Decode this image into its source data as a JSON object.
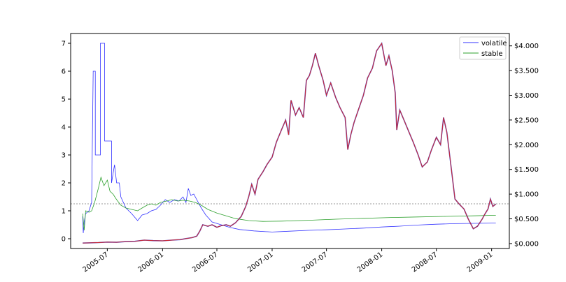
{
  "chart_data": {
    "type": "line",
    "title": "",
    "xlabel": "",
    "ylabel_left": "",
    "ylabel_right": "",
    "ylim_left": [
      -0.35,
      7.35
    ],
    "ylim_right": [
      -0.1,
      4.25
    ],
    "xlim": [
      "2005-03-01",
      "2009-03-01"
    ],
    "reference_line": {
      "axis": "left",
      "value": 1.25,
      "style": "dotted",
      "color": "#999999"
    },
    "legend_placement": "top-right",
    "colors": {
      "volatile": "#3333ff",
      "stable": "#2ca02c",
      "price": "#d62728",
      "price_overlay": "#1f1fbf"
    },
    "x_ticks": [
      {
        "date": "2005-07-01",
        "label": "2005-07"
      },
      {
        "date": "2006-01-01",
        "label": "2006-01"
      },
      {
        "date": "2006-07-01",
        "label": "2006-07"
      },
      {
        "date": "2007-01-01",
        "label": "2007-01"
      },
      {
        "date": "2007-07-01",
        "label": "2007-07"
      },
      {
        "date": "2008-01-01",
        "label": "2008-01"
      },
      {
        "date": "2008-07-01",
        "label": "2008-07"
      },
      {
        "date": "2009-01-01",
        "label": "2009-01"
      }
    ],
    "y_ticks_left": [
      {
        "value": 0,
        "label": "0"
      },
      {
        "value": 1,
        "label": "1"
      },
      {
        "value": 2,
        "label": "2"
      },
      {
        "value": 3,
        "label": "3"
      },
      {
        "value": 4,
        "label": "4"
      },
      {
        "value": 5,
        "label": "5"
      },
      {
        "value": 6,
        "label": "6"
      },
      {
        "value": 7,
        "label": "7"
      }
    ],
    "y_ticks_right": [
      {
        "value": 0,
        "label": "$0.000"
      },
      {
        "value": 0.5,
        "label": "$0.500"
      },
      {
        "value": 1.0,
        "label": "$1.000"
      },
      {
        "value": 1.5,
        "label": "$1.500"
      },
      {
        "value": 2.0,
        "label": "$2.000"
      },
      {
        "value": 2.5,
        "label": "$2.500"
      },
      {
        "value": 3.0,
        "label": "$3.000"
      },
      {
        "value": 3.5,
        "label": "$3.500"
      },
      {
        "value": 4.0,
        "label": "$4.000"
      }
    ],
    "series": [
      {
        "name": "volatile",
        "axis": "left",
        "points": [
          [
            "2005-04-10",
            0.8
          ],
          [
            "2005-04-12",
            0.2
          ],
          [
            "2005-04-15",
            0.6
          ],
          [
            "2005-04-20",
            0.9
          ],
          [
            "2005-05-01",
            1.0
          ],
          [
            "2005-05-10",
            1.3
          ],
          [
            "2005-05-15",
            6.0
          ],
          [
            "2005-05-22",
            6.0
          ],
          [
            "2005-05-22",
            3.0
          ],
          [
            "2005-06-08",
            3.0
          ],
          [
            "2005-06-08",
            7.0
          ],
          [
            "2005-06-22",
            7.0
          ],
          [
            "2005-06-22",
            3.5
          ],
          [
            "2005-07-15",
            3.5
          ],
          [
            "2005-07-15",
            2.0
          ],
          [
            "2005-07-25",
            2.65
          ],
          [
            "2005-08-01",
            2.0
          ],
          [
            "2005-08-10",
            2.0
          ],
          [
            "2005-08-15",
            1.5
          ],
          [
            "2005-09-01",
            1.1
          ],
          [
            "2005-09-20",
            0.9
          ],
          [
            "2005-10-10",
            0.65
          ],
          [
            "2005-10-25",
            0.85
          ],
          [
            "2005-11-10",
            0.9
          ],
          [
            "2005-11-25",
            1.0
          ],
          [
            "2005-12-10",
            1.05
          ],
          [
            "2005-12-25",
            1.2
          ],
          [
            "2006-01-10",
            1.4
          ],
          [
            "2006-01-25",
            1.3
          ],
          [
            "2006-02-10",
            1.4
          ],
          [
            "2006-02-25",
            1.35
          ],
          [
            "2006-03-10",
            1.5
          ],
          [
            "2006-03-20",
            1.3
          ],
          [
            "2006-03-28",
            1.8
          ],
          [
            "2006-04-05",
            1.55
          ],
          [
            "2006-04-15",
            1.6
          ],
          [
            "2006-04-25",
            1.4
          ],
          [
            "2006-05-10",
            1.1
          ],
          [
            "2006-05-25",
            0.85
          ],
          [
            "2006-06-15",
            0.6
          ],
          [
            "2006-07-15",
            0.5
          ],
          [
            "2006-08-15",
            0.4
          ],
          [
            "2006-09-15",
            0.33
          ],
          [
            "2006-11-01",
            0.28
          ],
          [
            "2007-01-01",
            0.24
          ],
          [
            "2007-03-01",
            0.27
          ],
          [
            "2007-05-01",
            0.3
          ],
          [
            "2007-07-01",
            0.32
          ],
          [
            "2007-09-01",
            0.35
          ],
          [
            "2007-11-01",
            0.38
          ],
          [
            "2008-01-01",
            0.42
          ],
          [
            "2008-03-01",
            0.45
          ],
          [
            "2008-05-01",
            0.49
          ],
          [
            "2008-07-01",
            0.52
          ],
          [
            "2008-09-01",
            0.54
          ],
          [
            "2008-11-01",
            0.55
          ],
          [
            "2009-01-01",
            0.56
          ],
          [
            "2009-01-15",
            0.56
          ]
        ]
      },
      {
        "name": "stable",
        "axis": "left",
        "points": [
          [
            "2005-04-10",
            0.9
          ],
          [
            "2005-04-15",
            0.3
          ],
          [
            "2005-04-20",
            1.0
          ],
          [
            "2005-05-01",
            0.95
          ],
          [
            "2005-05-10",
            1.0
          ],
          [
            "2005-05-20",
            1.3
          ],
          [
            "2005-06-01",
            1.8
          ],
          [
            "2005-06-10",
            2.2
          ],
          [
            "2005-06-20",
            1.9
          ],
          [
            "2005-07-01",
            2.1
          ],
          [
            "2005-07-10",
            1.7
          ],
          [
            "2005-07-20",
            1.6
          ],
          [
            "2005-08-01",
            1.4
          ],
          [
            "2005-08-15",
            1.2
          ],
          [
            "2005-09-01",
            1.1
          ],
          [
            "2005-09-20",
            1.05
          ],
          [
            "2005-10-10",
            1.0
          ],
          [
            "2005-10-25",
            1.1
          ],
          [
            "2005-11-10",
            1.2
          ],
          [
            "2005-11-25",
            1.25
          ],
          [
            "2005-12-10",
            1.2
          ],
          [
            "2005-12-25",
            1.3
          ],
          [
            "2006-01-15",
            1.35
          ],
          [
            "2006-02-01",
            1.4
          ],
          [
            "2006-02-20",
            1.35
          ],
          [
            "2006-03-10",
            1.38
          ],
          [
            "2006-04-01",
            1.35
          ],
          [
            "2006-04-20",
            1.3
          ],
          [
            "2006-05-10",
            1.2
          ],
          [
            "2006-06-01",
            1.05
          ],
          [
            "2006-07-01",
            0.92
          ],
          [
            "2006-08-01",
            0.82
          ],
          [
            "2006-09-01",
            0.72
          ],
          [
            "2006-10-15",
            0.65
          ],
          [
            "2006-12-01",
            0.62
          ],
          [
            "2007-02-01",
            0.63
          ],
          [
            "2007-05-01",
            0.66
          ],
          [
            "2007-08-01",
            0.7
          ],
          [
            "2007-11-01",
            0.73
          ],
          [
            "2008-02-01",
            0.76
          ],
          [
            "2008-05-01",
            0.78
          ],
          [
            "2008-08-01",
            0.8
          ],
          [
            "2008-11-01",
            0.82
          ],
          [
            "2009-01-15",
            0.84
          ]
        ]
      },
      {
        "name": "",
        "axis": "right",
        "points": [
          [
            "2005-04-10",
            0.01
          ],
          [
            "2005-05-01",
            0.015
          ],
          [
            "2005-06-01",
            0.02
          ],
          [
            "2005-07-01",
            0.03
          ],
          [
            "2005-08-01",
            0.025
          ],
          [
            "2005-09-01",
            0.04
          ],
          [
            "2005-10-01",
            0.045
          ],
          [
            "2005-11-01",
            0.07
          ],
          [
            "2005-12-01",
            0.06
          ],
          [
            "2006-01-01",
            0.055
          ],
          [
            "2006-02-01",
            0.07
          ],
          [
            "2006-03-01",
            0.08
          ],
          [
            "2006-03-20",
            0.1
          ],
          [
            "2006-04-10",
            0.12
          ],
          [
            "2006-04-25",
            0.15
          ],
          [
            "2006-05-05",
            0.25
          ],
          [
            "2006-05-15",
            0.38
          ],
          [
            "2006-06-01",
            0.35
          ],
          [
            "2006-06-15",
            0.38
          ],
          [
            "2006-07-01",
            0.33
          ],
          [
            "2006-07-15",
            0.36
          ],
          [
            "2006-08-01",
            0.38
          ],
          [
            "2006-08-15",
            0.35
          ],
          [
            "2006-09-01",
            0.42
          ],
          [
            "2006-09-20",
            0.55
          ],
          [
            "2006-10-05",
            0.75
          ],
          [
            "2006-10-15",
            0.95
          ],
          [
            "2006-10-25",
            1.2
          ],
          [
            "2006-11-05",
            1.0
          ],
          [
            "2006-11-15",
            1.3
          ],
          [
            "2006-12-01",
            1.45
          ],
          [
            "2006-12-15",
            1.6
          ],
          [
            "2007-01-01",
            1.75
          ],
          [
            "2007-01-15",
            2.05
          ],
          [
            "2007-02-01",
            2.3
          ],
          [
            "2007-02-15",
            2.5
          ],
          [
            "2007-02-25",
            2.2
          ],
          [
            "2007-03-05",
            2.9
          ],
          [
            "2007-03-20",
            2.6
          ],
          [
            "2007-04-01",
            2.75
          ],
          [
            "2007-04-15",
            2.55
          ],
          [
            "2007-04-25",
            3.3
          ],
          [
            "2007-05-05",
            3.4
          ],
          [
            "2007-05-15",
            3.6
          ],
          [
            "2007-05-25",
            3.85
          ],
          [
            "2007-06-05",
            3.6
          ],
          [
            "2007-06-20",
            3.3
          ],
          [
            "2007-07-01",
            3.0
          ],
          [
            "2007-07-15",
            3.25
          ],
          [
            "2007-08-01",
            2.95
          ],
          [
            "2007-08-15",
            2.75
          ],
          [
            "2007-09-01",
            2.55
          ],
          [
            "2007-09-10",
            1.9
          ],
          [
            "2007-09-20",
            2.2
          ],
          [
            "2007-10-01",
            2.45
          ],
          [
            "2007-10-15",
            2.7
          ],
          [
            "2007-11-01",
            3.0
          ],
          [
            "2007-11-15",
            3.35
          ],
          [
            "2007-12-01",
            3.55
          ],
          [
            "2007-12-15",
            3.9
          ],
          [
            "2008-01-01",
            4.05
          ],
          [
            "2008-01-15",
            3.6
          ],
          [
            "2008-01-25",
            3.8
          ],
          [
            "2008-02-05",
            3.5
          ],
          [
            "2008-02-15",
            3.05
          ],
          [
            "2008-02-20",
            2.3
          ],
          [
            "2008-03-01",
            2.7
          ],
          [
            "2008-03-15",
            2.5
          ],
          [
            "2008-04-01",
            2.25
          ],
          [
            "2008-04-15",
            2.05
          ],
          [
            "2008-05-01",
            1.8
          ],
          [
            "2008-05-15",
            1.55
          ],
          [
            "2008-06-01",
            1.65
          ],
          [
            "2008-06-15",
            1.9
          ],
          [
            "2008-07-01",
            2.15
          ],
          [
            "2008-07-15",
            2.0
          ],
          [
            "2008-07-25",
            2.55
          ],
          [
            "2008-08-05",
            2.25
          ],
          [
            "2008-08-20",
            1.5
          ],
          [
            "2008-09-01",
            0.9
          ],
          [
            "2008-09-15",
            0.8
          ],
          [
            "2008-10-01",
            0.7
          ],
          [
            "2008-10-15",
            0.5
          ],
          [
            "2008-11-01",
            0.3
          ],
          [
            "2008-11-15",
            0.35
          ],
          [
            "2008-12-01",
            0.5
          ],
          [
            "2008-12-10",
            0.6
          ],
          [
            "2008-12-20",
            0.7
          ],
          [
            "2008-12-28",
            0.9
          ],
          [
            "2009-01-05",
            0.75
          ],
          [
            "2009-01-15",
            0.8
          ]
        ]
      }
    ]
  }
}
